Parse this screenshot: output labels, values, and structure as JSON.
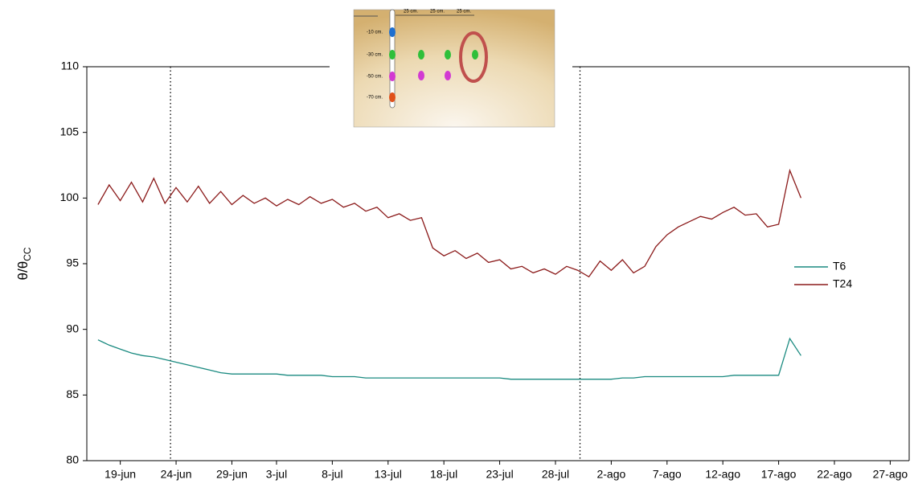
{
  "chart_data": {
    "type": "line",
    "x": [
      168,
      169,
      170,
      171,
      172,
      173,
      174,
      175,
      176,
      177,
      178,
      179,
      180,
      181,
      182,
      183,
      184,
      185,
      186,
      187,
      188,
      189,
      190,
      191,
      192,
      193,
      194,
      195,
      196,
      197,
      198,
      199,
      200,
      201,
      202,
      203,
      204,
      205,
      206,
      207,
      208,
      209,
      210,
      211,
      212,
      213,
      214,
      215,
      216,
      217,
      218,
      219,
      220,
      221,
      222,
      223,
      224,
      225,
      226,
      227,
      228,
      229,
      230,
      231
    ],
    "series": [
      {
        "name": "T6",
        "color": "#1a8a80",
        "values": [
          89.2,
          88.8,
          88.5,
          88.2,
          88,
          87.9,
          87.7,
          87.5,
          87.3,
          87.1,
          86.9,
          86.7,
          86.6,
          86.6,
          86.6,
          86.6,
          86.6,
          86.5,
          86.5,
          86.5,
          86.5,
          86.4,
          86.4,
          86.4,
          86.3,
          86.3,
          86.3,
          86.3,
          86.3,
          86.3,
          86.3,
          86.3,
          86.3,
          86.3,
          86.3,
          86.3,
          86.3,
          86.2,
          86.2,
          86.2,
          86.2,
          86.2,
          86.2,
          86.2,
          86.2,
          86.2,
          86.2,
          86.3,
          86.3,
          86.4,
          86.4,
          86.4,
          86.4,
          86.4,
          86.4,
          86.4,
          86.4,
          86.5,
          86.5,
          86.5,
          86.5,
          86.5,
          89.3,
          88
        ]
      },
      {
        "name": "T24",
        "color": "#8b1a1a",
        "values": [
          99.5,
          101,
          99.8,
          101.2,
          99.7,
          101.5,
          99.6,
          100.8,
          99.7,
          100.9,
          99.6,
          100.5,
          99.5,
          100.2,
          99.6,
          100,
          99.4,
          99.9,
          99.5,
          100.1,
          99.6,
          99.9,
          99.3,
          99.6,
          99,
          99.3,
          98.5,
          98.8,
          98.3,
          98.5,
          96.2,
          95.6,
          96,
          95.4,
          95.8,
          95.1,
          95.3,
          94.6,
          94.8,
          94.3,
          94.6,
          94.2,
          94.8,
          94.5,
          94,
          95.2,
          94.5,
          95.3,
          94.3,
          94.8,
          96.3,
          97.2,
          97.8,
          98.2,
          98.6,
          98.4,
          98.9,
          99.3,
          98.7,
          98.8,
          97.8,
          98,
          102.1,
          100
        ]
      }
    ],
    "xlim": [
      167,
      240.7
    ],
    "xticks": [
      {
        "value": 170,
        "label": "19-jun"
      },
      {
        "value": 175,
        "label": "24-jun"
      },
      {
        "value": 180,
        "label": "29-jun"
      },
      {
        "value": 184,
        "label": "3-jul"
      },
      {
        "value": 189,
        "label": "8-jul"
      },
      {
        "value": 194,
        "label": "13-jul"
      },
      {
        "value": 199,
        "label": "18-jul"
      },
      {
        "value": 204,
        "label": "23-jul"
      },
      {
        "value": 209,
        "label": "28-jul"
      },
      {
        "value": 214,
        "label": "2-ago"
      },
      {
        "value": 219,
        "label": "7-ago"
      },
      {
        "value": 224,
        "label": "12-ago"
      },
      {
        "value": 229,
        "label": "17-ago"
      },
      {
        "value": 234,
        "label": "22-ago"
      },
      {
        "value": 239,
        "label": "27-ago"
      }
    ],
    "ylim": [
      80,
      110
    ],
    "yticks": [
      80,
      85,
      90,
      95,
      100,
      105,
      110
    ],
    "y_label": "θ/θ",
    "y_label_subscript": "CC",
    "vlines": [
      174.5,
      211.2
    ],
    "legend": "right"
  },
  "inset": {
    "depths": [
      "-10 cm.",
      "-30 cm.",
      "-50 cm.",
      "-70 cm."
    ],
    "spacings": [
      "25 cm.",
      "25 cm.",
      "25 cm."
    ]
  }
}
